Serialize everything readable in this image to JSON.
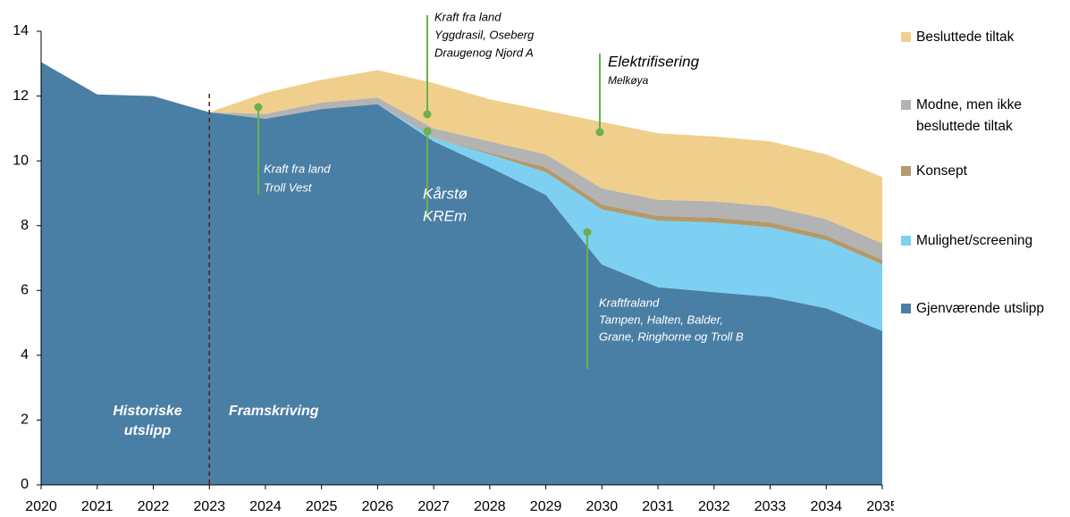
{
  "chart_data": {
    "type": "stacked_area",
    "x": [
      2020,
      2021,
      2022,
      2023,
      2024,
      2025,
      2026,
      2027,
      2028,
      2029,
      2030,
      2031,
      2032,
      2033,
      2034,
      2035
    ],
    "xlim": [
      2020,
      2035
    ],
    "xticks": [
      2020,
      2021,
      2022,
      2023,
      2024,
      2025,
      2026,
      2027,
      2028,
      2029,
      2030,
      2031,
      2032,
      2033,
      2034,
      2035
    ],
    "ylim": [
      0,
      14
    ],
    "yticks": [
      0,
      2,
      4,
      6,
      8,
      10,
      12,
      14
    ],
    "divider_x": 2023,
    "series": [
      {
        "name": "Gjenværende utslipp",
        "color": "#4a7fa5",
        "values": [
          13.05,
          12.05,
          12.0,
          11.5,
          11.3,
          11.6,
          11.75,
          10.6,
          9.8,
          8.95,
          6.8,
          6.1,
          5.95,
          5.8,
          5.45,
          4.75
        ]
      },
      {
        "name": "Mulighet/screening",
        "color": "#7dd0f2",
        "values": [
          0,
          0,
          0,
          0,
          0,
          0,
          0,
          0.1,
          0.4,
          0.7,
          1.7,
          2.05,
          2.15,
          2.15,
          2.1,
          2.05
        ]
      },
      {
        "name": "Konsept",
        "color": "#b49a6a",
        "values": [
          0,
          0,
          0,
          0,
          0,
          0,
          0,
          0,
          0.05,
          0.15,
          0.15,
          0.15,
          0.15,
          0.15,
          0.15,
          0.15
        ]
      },
      {
        "name": "Modne, men ikke besluttede tiltak",
        "color": "#b3b3b3",
        "values": [
          0,
          0,
          0,
          0,
          0.15,
          0.2,
          0.2,
          0.3,
          0.35,
          0.4,
          0.5,
          0.5,
          0.5,
          0.5,
          0.5,
          0.5
        ]
      },
      {
        "name": "Besluttede tiltak",
        "color": "#f0cf8c",
        "values": [
          0,
          0,
          0,
          0,
          0.65,
          0.7,
          0.85,
          1.4,
          1.3,
          1.35,
          2.05,
          2.05,
          2.0,
          2.0,
          2.0,
          2.05
        ]
      }
    ],
    "annotations": [
      {
        "lines": [
          "Kraft fra land",
          "Troll Vest"
        ]
      },
      {
        "lines": [
          "Kraft fra land",
          "Yggdrasil, Oseberg",
          "Draugenog Njord A"
        ]
      },
      {
        "lines": [
          "Kårstø",
          "KREm"
        ]
      },
      {
        "lines": [
          "Elektrifisering",
          "Melkøya"
        ]
      },
      {
        "lines": [
          "Kraftfraland",
          "Tampen, Halten, Balder,",
          "Grane, Ringhorne og Troll B"
        ]
      },
      {
        "lines": [
          "Historiske",
          "utslipp"
        ]
      },
      {
        "lines": [
          "Framskriving"
        ]
      }
    ]
  }
}
